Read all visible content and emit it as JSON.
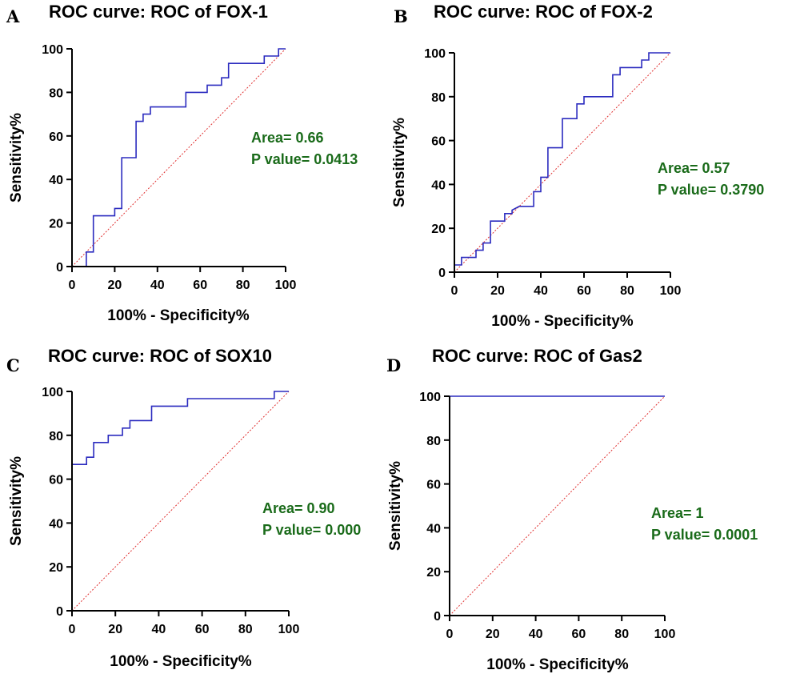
{
  "colors": {
    "roc_line": "#2b2bbf",
    "reference_line": "#e03030",
    "annotation": "#1a6b1a",
    "axis": "#000000"
  },
  "chart_data": [
    {
      "panel": "A",
      "type": "line",
      "title": "ROC curve: ROC of FOX-1",
      "xlabel": "100% - Specificity%",
      "ylabel": "Sensitivity%",
      "xlim": [
        0,
        100
      ],
      "ylim": [
        0,
        100
      ],
      "xticks": [
        0,
        20,
        40,
        60,
        80,
        100
      ],
      "yticks": [
        0,
        20,
        40,
        60,
        80,
        100
      ],
      "x": [
        0,
        6.7,
        6.7,
        10,
        10,
        20,
        20,
        23.3,
        23.3,
        30,
        30,
        33.3,
        33.3,
        36.7,
        36.7,
        53.3,
        53.3,
        63.3,
        63.3,
        70,
        70,
        73.3,
        73.3,
        90,
        90,
        96.7,
        96.7,
        100
      ],
      "y": [
        0,
        0,
        6.7,
        6.7,
        23.3,
        23.3,
        26.7,
        26.7,
        50,
        50,
        66.7,
        66.7,
        70,
        70,
        73.3,
        73.3,
        80,
        80,
        83.3,
        83.3,
        86.7,
        86.7,
        93.3,
        93.3,
        96.7,
        96.7,
        100,
        100
      ],
      "area_text": "Area= 0.66",
      "p_text": "P value= 0.0413"
    },
    {
      "panel": "B",
      "type": "line",
      "title": "ROC curve: ROC of FOX-2",
      "xlabel": "100% - Specificity%",
      "ylabel": "Sensitivity%",
      "xlim": [
        0,
        100
      ],
      "ylim": [
        0,
        100
      ],
      "xticks": [
        0,
        20,
        40,
        60,
        80,
        100
      ],
      "yticks": [
        0,
        20,
        40,
        60,
        80,
        100
      ],
      "x": [
        0,
        3.3,
        3.3,
        10,
        10,
        13.3,
        13.3,
        16.7,
        16.7,
        23.3,
        23.3,
        26.7,
        26.7,
        30,
        30,
        36.7,
        36.7,
        40,
        40,
        43.3,
        43.3,
        50,
        50,
        56.7,
        56.7,
        60,
        60,
        73.3,
        73.3,
        76.7,
        76.7,
        86.7,
        86.7,
        90,
        90,
        100
      ],
      "y": [
        3.3,
        3.3,
        6.7,
        6.7,
        10,
        10,
        13.3,
        13.3,
        23.3,
        23.3,
        26.7,
        26.7,
        28.3,
        30,
        30,
        30,
        36.7,
        36.7,
        43.3,
        43.3,
        56.7,
        56.7,
        70,
        70,
        76.7,
        76.7,
        80,
        80,
        90,
        90,
        93.3,
        93.3,
        96.7,
        96.7,
        100,
        100
      ],
      "area_text": "Area= 0.57",
      "p_text": "P value= 0.3790"
    },
    {
      "panel": "C",
      "type": "line",
      "title": "ROC curve: ROC of SOX10",
      "xlabel": "100% - Specificity%",
      "ylabel": "Sensitivity%",
      "xlim": [
        0,
        100
      ],
      "ylim": [
        0,
        100
      ],
      "xticks": [
        0,
        20,
        40,
        60,
        80,
        100
      ],
      "yticks": [
        0,
        20,
        40,
        60,
        80,
        100
      ],
      "x": [
        0,
        0,
        6.7,
        6.7,
        10,
        10,
        16.7,
        16.7,
        23.3,
        23.3,
        26.7,
        26.7,
        36.7,
        36.7,
        53.3,
        53.3,
        93.3,
        93.3,
        100
      ],
      "y": [
        0,
        66.7,
        66.7,
        70,
        70,
        76.7,
        76.7,
        80,
        80,
        83.3,
        83.3,
        86.7,
        86.7,
        93.3,
        93.3,
        96.7,
        96.7,
        100,
        100
      ],
      "area_text": "Area= 0.90",
      "p_text": "P value= 0.000"
    },
    {
      "panel": "D",
      "type": "line",
      "title": "ROC curve: ROC of Gas2",
      "xlabel": "100% - Specificity%",
      "ylabel": "Sensitivity%",
      "xlim": [
        0,
        100
      ],
      "ylim": [
        0,
        100
      ],
      "xticks": [
        0,
        20,
        40,
        60,
        80,
        100
      ],
      "yticks": [
        0,
        20,
        40,
        60,
        80,
        100
      ],
      "x": [
        0,
        0,
        100
      ],
      "y": [
        0,
        100,
        100
      ],
      "area_text": "Area= 1",
      "p_text": "P value= 0.0001"
    }
  ]
}
